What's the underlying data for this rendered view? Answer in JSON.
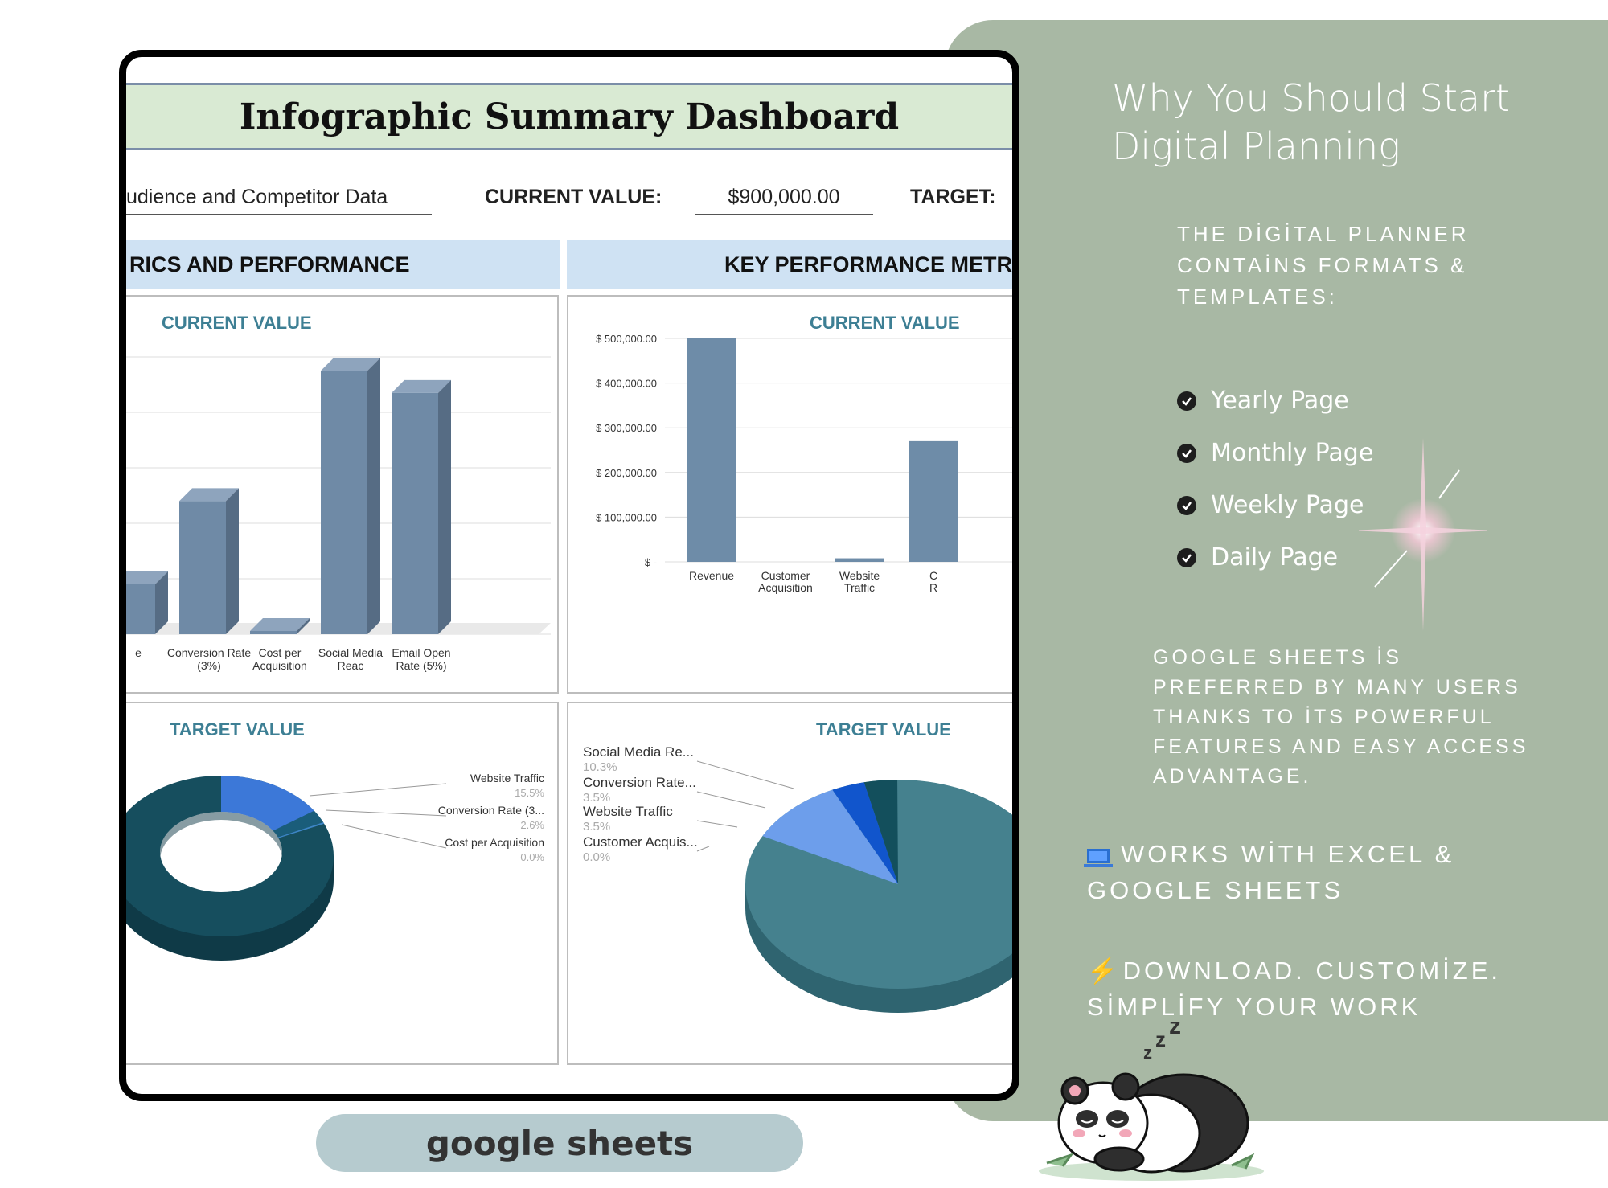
{
  "dashboard": {
    "title": "Infographic Summary Dashboard",
    "data_label": "udience and Competitor Data",
    "current_value_label": "CURRENT VALUE:",
    "current_value": "$900,000.00",
    "target_label": "TARGET:",
    "left_section": "RICS AND PERFORMANCE",
    "right_section": "KEY PERFORMANCE METR"
  },
  "chart_data": [
    {
      "type": "bar",
      "title": "CURRENT VALUE",
      "categories": [
        "e",
        "Conversion Rate (3%)",
        "Cost per Acquisition",
        "Social Media Reac",
        "Email Open Rate (5%)"
      ],
      "values": [
        18,
        48,
        0,
        95,
        87
      ],
      "ylim": [
        0,
        100
      ]
    },
    {
      "type": "bar",
      "title": "CURRENT VALUE",
      "categories": [
        "Revenue",
        "Customer Acquisition",
        "Website Traffic",
        "C R"
      ],
      "values": [
        500000,
        0,
        8000,
        270000
      ],
      "yticks": [
        "$ 500,000.00",
        "$ 400,000.00",
        "$ 300,000.00",
        "$ 200,000.00",
        "$ 100,000.00",
        "$ -"
      ],
      "ylim": [
        0,
        500000
      ]
    },
    {
      "type": "pie",
      "title": "TARGET VALUE",
      "labels": [
        "Website Traffic",
        "Conversion Rate (3...",
        "Cost per Acquisition"
      ],
      "values": [
        15.5,
        2.6,
        0.0
      ],
      "value_labels": [
        "15.5%",
        "2.6%",
        "0.0%"
      ],
      "colors": [
        "#3c78d8",
        "#1a5d7a",
        "#3d85c6"
      ]
    },
    {
      "type": "pie",
      "title": "TARGET VALUE",
      "labels": [
        "Social Media Re...",
        "Conversion Rate...",
        "Website Traffic",
        "Customer Acquis..."
      ],
      "values": [
        10.3,
        3.5,
        3.5,
        0.0
      ],
      "value_labels": [
        "10.3%",
        "3.5%",
        "3.5%",
        "0.0%"
      ],
      "colors": [
        "#6d9eeb",
        "#1155cc",
        "#134f5c",
        "#45818e"
      ]
    }
  ],
  "side": {
    "title": "Why You Should Start Digital Planning",
    "subtitle": "THE DİGİTAL PLANNER CONTAİNS FORMATS & TEMPLATES:",
    "features": [
      "Yearly Page",
      "Monthly Page",
      "Weekly Page",
      "Daily Page"
    ],
    "paragraph": "GOOGLE SHEETS İS PREFERRED BY MANY USERS THANKS TO İTS POWERFUL FEATURES AND EASY ACCESS ADVANTAGE.",
    "works_with": "WORKS WİTH EXCEL & GOOGLE SHEETS",
    "download": "DOWNLOAD. CUSTOMİZE. SİMPLİFY YOUR WORK",
    "panel_color": "#a8b8a4"
  },
  "badge": {
    "label": "google sheets"
  }
}
